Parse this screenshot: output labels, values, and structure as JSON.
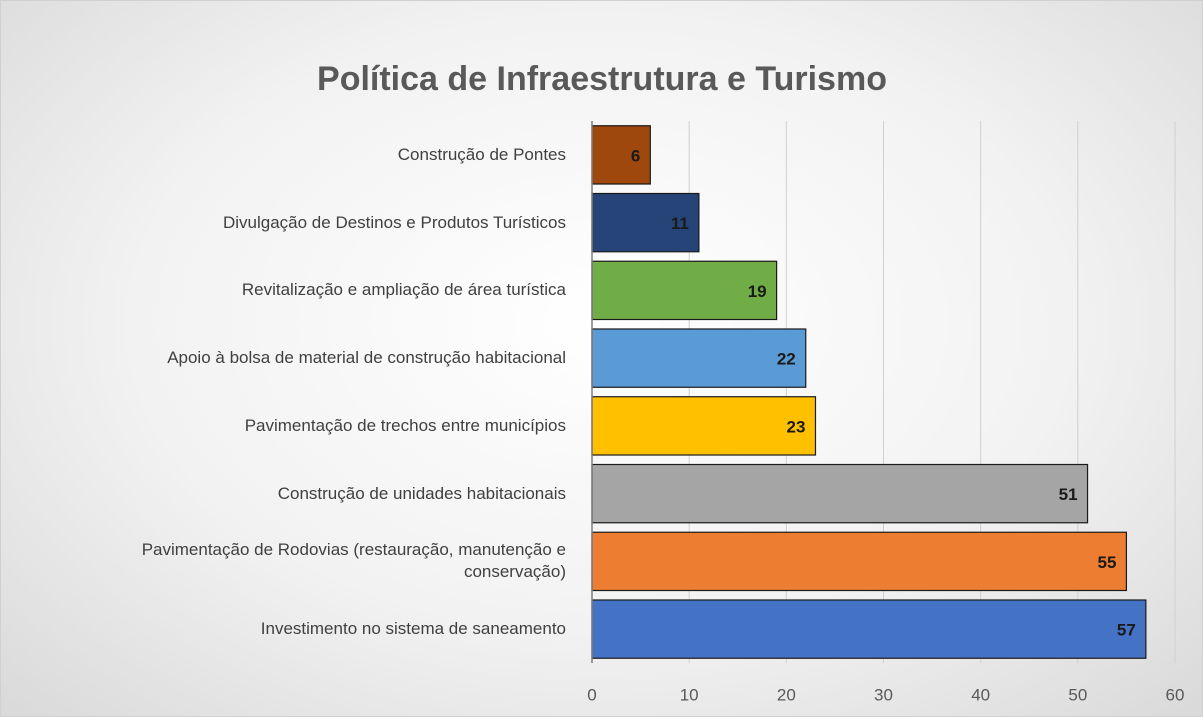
{
  "chart_data": {
    "type": "bar",
    "orientation": "horizontal",
    "title": "Política de Infraestrutura e Turismo",
    "categories": [
      "Construção de Pontes",
      "Divulgação de Destinos e Produtos Turísticos",
      "Revitalização e ampliação de área turística",
      "Apoio à bolsa de material de construção habitacional",
      "Pavimentação de trechos entre municípios",
      "Construção de unidades habitacionais",
      "Pavimentação de Rodovias (restauração, manutenção e conservação)",
      "Investimento no sistema de saneamento"
    ],
    "values": [
      6,
      11,
      19,
      22,
      23,
      51,
      55,
      57
    ],
    "colors": [
      "#9e480e",
      "#264478",
      "#70ad47",
      "#5b9bd5",
      "#ffc000",
      "#a5a5a5",
      "#ed7d31",
      "#4472c4"
    ],
    "xlim": [
      0,
      60
    ],
    "xticks": [
      0,
      10,
      20,
      30,
      40,
      50,
      60
    ],
    "grid": true
  }
}
